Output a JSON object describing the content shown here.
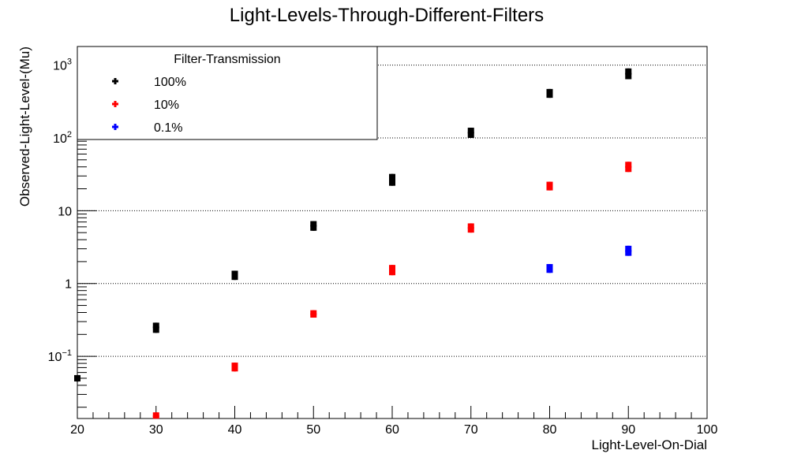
{
  "chart_data": {
    "type": "scatter",
    "title": "Light-Levels-Through-Different-Filters",
    "xlabel": "Light-Level-On-Dial",
    "ylabel": "Observed-Light-Level-(Mu)",
    "xlim": [
      20,
      100
    ],
    "ylim": [
      0.014,
      1800
    ],
    "yscale": "log",
    "grid": {
      "x": false,
      "y": true
    },
    "x_ticks": [
      "20",
      "30",
      "40",
      "50",
      "60",
      "70",
      "80",
      "90",
      "100"
    ],
    "y_ticks": [
      {
        "value": 0.1,
        "base": "10",
        "exp": "−1"
      },
      {
        "value": 1,
        "base": "1",
        "exp": ""
      },
      {
        "value": 10,
        "base": "10",
        "exp": ""
      },
      {
        "value": 100,
        "base": "10",
        "exp": "2"
      },
      {
        "value": 1000,
        "base": "10",
        "exp": "3"
      }
    ],
    "legend": {
      "title": "Filter-Transmission",
      "position": "top-left"
    },
    "series": [
      {
        "name": "100%",
        "color": "#000000",
        "points": [
          {
            "x": 20,
            "y": 0.05,
            "lo": 0.045,
            "hi": 0.055
          },
          {
            "x": 30,
            "y": 0.25,
            "lo": 0.21,
            "hi": 0.29
          },
          {
            "x": 40,
            "y": 1.3,
            "lo": 1.12,
            "hi": 1.5
          },
          {
            "x": 50,
            "y": 6.2,
            "lo": 5.3,
            "hi": 7.2
          },
          {
            "x": 60,
            "y": 26,
            "lo": 22,
            "hi": 32
          },
          {
            "x": 70,
            "y": 118,
            "lo": 100,
            "hi": 138
          },
          {
            "x": 80,
            "y": 410,
            "lo": 355,
            "hi": 470
          },
          {
            "x": 90,
            "y": 760,
            "lo": 640,
            "hi": 900
          }
        ]
      },
      {
        "name": "10%",
        "color": "#ff0000",
        "points": [
          {
            "x": 30,
            "y": 0.015,
            "lo": 0.014,
            "hi": 0.017
          },
          {
            "x": 40,
            "y": 0.072,
            "lo": 0.062,
            "hi": 0.082
          },
          {
            "x": 50,
            "y": 0.38,
            "lo": 0.34,
            "hi": 0.43
          },
          {
            "x": 60,
            "y": 1.5,
            "lo": 1.3,
            "hi": 1.8
          },
          {
            "x": 70,
            "y": 5.8,
            "lo": 5.0,
            "hi": 6.7
          },
          {
            "x": 80,
            "y": 22,
            "lo": 19,
            "hi": 25
          },
          {
            "x": 90,
            "y": 40,
            "lo": 34,
            "hi": 47
          }
        ]
      },
      {
        "name": "0.1%",
        "color": "#0000ff",
        "points": [
          {
            "x": 80,
            "y": 1.6,
            "lo": 1.4,
            "hi": 1.85
          },
          {
            "x": 90,
            "y": 2.8,
            "lo": 2.4,
            "hi": 3.3
          }
        ]
      }
    ]
  }
}
